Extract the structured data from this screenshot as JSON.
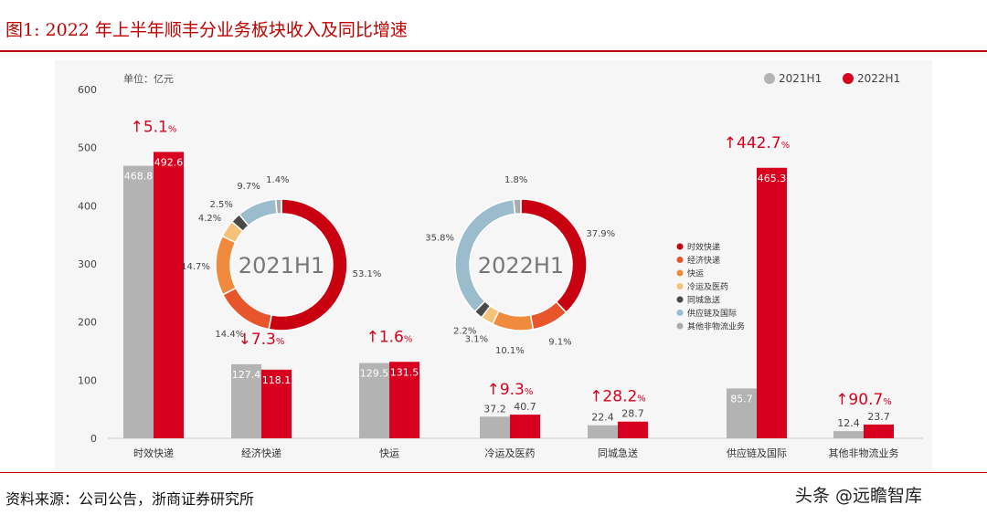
{
  "title": "图1:   2022 年上半年顺丰分业务板块收入及同比增速",
  "source": "资料来源：公司公告，浙商证券研究所",
  "watermark": "头条 @远瞻智库",
  "chart_data": [
    {
      "type": "bar",
      "unit_label": "单位：亿元",
      "ylim": [
        0,
        600
      ],
      "yticks": [
        0,
        100,
        200,
        300,
        400,
        500,
        600
      ],
      "legend_position": "top-right",
      "categories": [
        "时效快递",
        "经济快递",
        "快运",
        "冷运及医药",
        "同城急送",
        "供应链及国际",
        "其他非物流业务"
      ],
      "series": [
        {
          "name": "2021H1",
          "color": "#b3b3b3",
          "values": [
            468.8,
            127.4,
            129.5,
            37.2,
            22.4,
            85.7,
            12.4
          ]
        },
        {
          "name": "2022H1",
          "color": "#d7001e",
          "values": [
            492.6,
            118.1,
            131.5,
            40.7,
            28.7,
            465.3,
            23.7
          ]
        }
      ],
      "growth": [
        {
          "dir": "up",
          "value": "5.1"
        },
        {
          "dir": "down",
          "value": "7.3"
        },
        {
          "dir": "up",
          "value": "1.6"
        },
        {
          "dir": "up",
          "value": "9.3"
        },
        {
          "dir": "up",
          "value": "28.2"
        },
        {
          "dir": "up",
          "value": "442.7"
        },
        {
          "dir": "up",
          "value": "90.7"
        }
      ],
      "growth_unit": "%"
    },
    {
      "type": "pie",
      "donut": true,
      "center_label": "2021H1",
      "labels": [
        "时效快递",
        "经济快递",
        "快运",
        "冷运及医药",
        "同城急送",
        "供应链及国际",
        "其他非物流业务"
      ],
      "values": [
        53.1,
        14.4,
        14.7,
        4.2,
        2.5,
        9.7,
        1.4
      ]
    },
    {
      "type": "pie",
      "donut": true,
      "center_label": "2022H1",
      "labels": [
        "时效快递",
        "经济快递",
        "快运",
        "冷运及医药",
        "同城急送",
        "供应链及国际",
        "其他非物流业务"
      ],
      "values": [
        37.9,
        9.1,
        10.1,
        3.1,
        2.2,
        35.8,
        1.8
      ]
    }
  ],
  "slice_colors": [
    "#c8000f",
    "#e8552a",
    "#f08a3c",
    "#f5c27a",
    "#4a4a4a",
    "#9bbccc",
    "#aaaaaa"
  ]
}
